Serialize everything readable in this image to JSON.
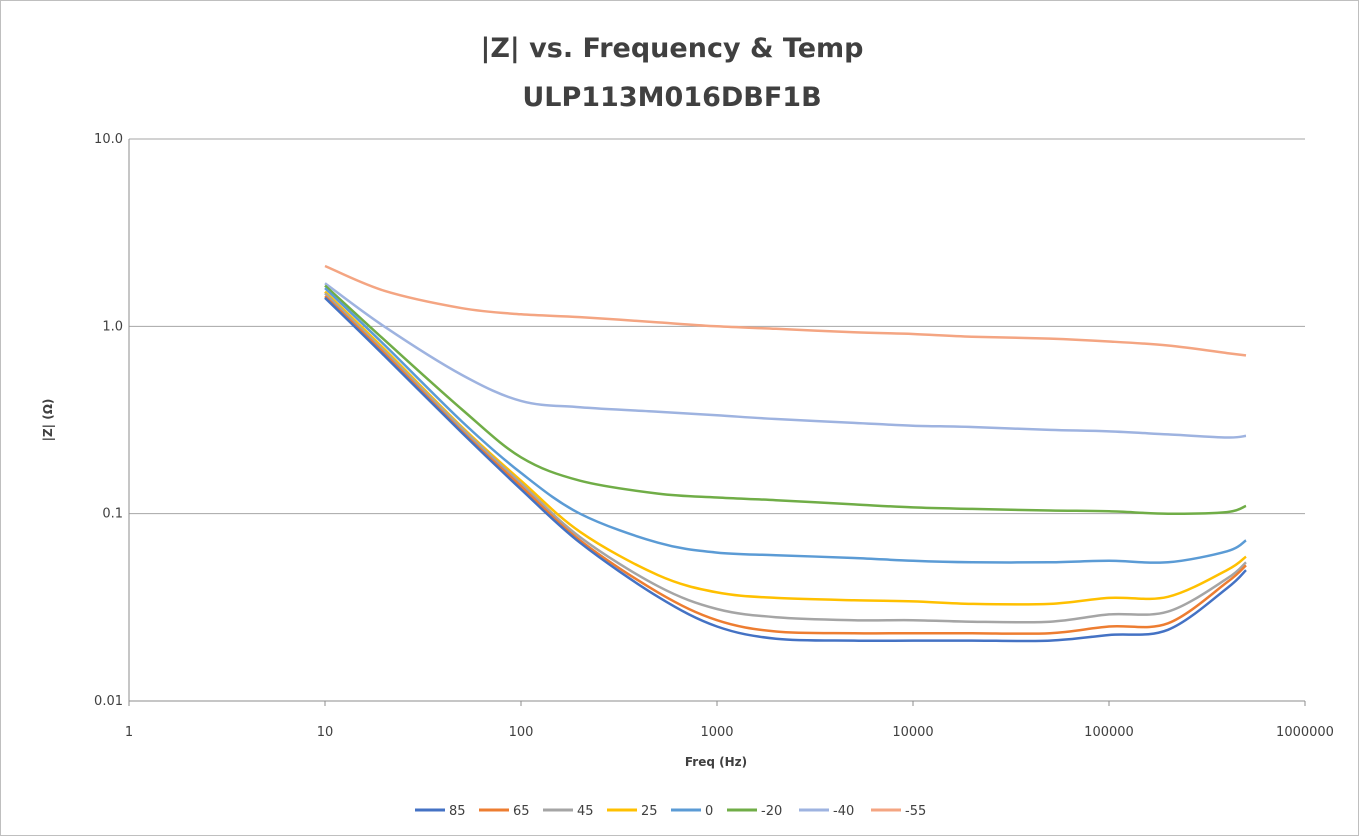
{
  "chart_data": {
    "type": "line",
    "title": "|Z|  vs. Frequency & Temp",
    "subtitle": "ULP113M016DBF1B",
    "xlabel": "Freq (Hz)",
    "ylabel": "|Z|  (Ω)",
    "x_scale": "log",
    "y_scale": "log",
    "xlim": [
      1,
      1000000
    ],
    "ylim": [
      0.01,
      10
    ],
    "x_ticks": [
      "1",
      "10",
      "100",
      "1000",
      "10000",
      "100000",
      "1000000"
    ],
    "y_ticks": [
      "0.01",
      "0.1",
      "1.0",
      "10.0"
    ],
    "grid": "horizontal major",
    "legend_position": "bottom",
    "x": [
      10,
      20,
      50,
      100,
      200,
      500,
      1000,
      2000,
      5000,
      10000,
      20000,
      50000,
      100000,
      200000,
      400000,
      500000
    ],
    "series": [
      {
        "name": "85",
        "color": "#4472c4",
        "values": [
          1.42,
          0.7,
          0.27,
          0.135,
          0.07,
          0.036,
          0.025,
          0.0215,
          0.021,
          0.021,
          0.021,
          0.021,
          0.0225,
          0.024,
          0.04,
          0.05
        ]
      },
      {
        "name": "65",
        "color": "#ed7d31",
        "values": [
          1.45,
          0.72,
          0.275,
          0.14,
          0.072,
          0.038,
          0.027,
          0.0235,
          0.023,
          0.023,
          0.023,
          0.023,
          0.025,
          0.026,
          0.043,
          0.053
        ]
      },
      {
        "name": "45",
        "color": "#a5a5a5",
        "values": [
          1.5,
          0.74,
          0.285,
          0.145,
          0.075,
          0.041,
          0.031,
          0.028,
          0.027,
          0.027,
          0.0265,
          0.0265,
          0.029,
          0.03,
          0.045,
          0.055
        ]
      },
      {
        "name": "25",
        "color": "#ffc000",
        "values": [
          1.53,
          0.76,
          0.29,
          0.15,
          0.08,
          0.047,
          0.038,
          0.0355,
          0.0345,
          0.034,
          0.033,
          0.033,
          0.0355,
          0.036,
          0.05,
          0.059
        ]
      },
      {
        "name": "0",
        "color": "#5b9bd5",
        "values": [
          1.6,
          0.8,
          0.31,
          0.165,
          0.1,
          0.07,
          0.062,
          0.06,
          0.058,
          0.056,
          0.055,
          0.055,
          0.056,
          0.055,
          0.063,
          0.072
        ]
      },
      {
        "name": "-20",
        "color": "#70ad47",
        "values": [
          1.65,
          0.85,
          0.36,
          0.2,
          0.15,
          0.128,
          0.122,
          0.118,
          0.112,
          0.108,
          0.106,
          0.104,
          0.103,
          0.1,
          0.102,
          0.11
        ]
      },
      {
        "name": "-40",
        "color": "#9eb3e0",
        "values": [
          1.7,
          1.0,
          0.55,
          0.4,
          0.37,
          0.35,
          0.335,
          0.32,
          0.305,
          0.295,
          0.29,
          0.28,
          0.275,
          0.265,
          0.255,
          0.26
        ]
      },
      {
        "name": "-55",
        "color": "#f4a582",
        "values": [
          2.1,
          1.55,
          1.25,
          1.16,
          1.12,
          1.05,
          1.0,
          0.97,
          0.93,
          0.91,
          0.88,
          0.86,
          0.83,
          0.79,
          0.72,
          0.7
        ]
      }
    ]
  }
}
